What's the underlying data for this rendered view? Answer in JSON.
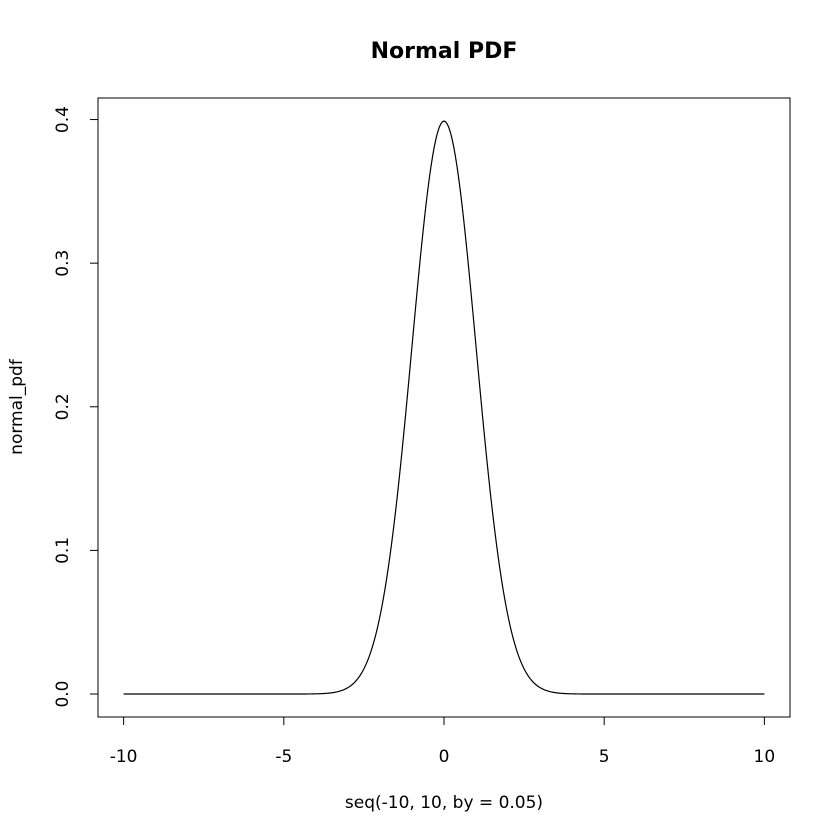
{
  "chart_data": {
    "type": "line",
    "title": "Normal PDF",
    "xlabel": "seq(-10, 10, by = 0.05)",
    "ylabel": "normal_pdf",
    "xlim": [
      -10.8,
      10.8
    ],
    "ylim": [
      -0.016,
      0.415
    ],
    "x_ticks": [
      -10,
      -5,
      0,
      5,
      10
    ],
    "x_tick_labels": [
      "-10",
      "-5",
      "0",
      "5",
      "10"
    ],
    "y_ticks": [
      0,
      0.1,
      0.2,
      0.3,
      0.4
    ],
    "y_tick_labels": [
      "0.0",
      "0.1",
      "0.2",
      "0.3",
      "0.4"
    ],
    "grid": false,
    "series": [
      {
        "distribution": "normal",
        "mean": 0,
        "sd": 1,
        "x_start": -10,
        "x_end": 10,
        "x_step": 0.05,
        "color": "#000000"
      }
    ]
  }
}
